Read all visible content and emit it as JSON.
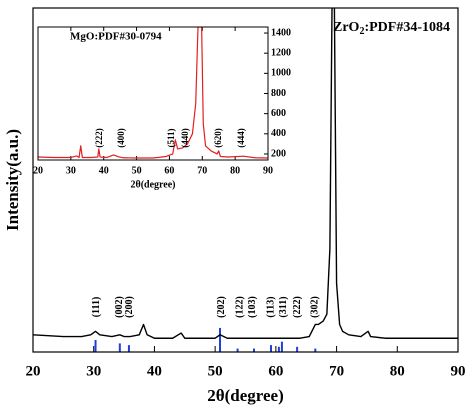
{
  "chart_data": [
    {
      "type": "line",
      "title": "ZrO",
      "title_subscript": "2",
      "title_suffix": ":PDF#34-1084",
      "x_label": "2θ(degree)",
      "y_label": "Intensity(a.u.)",
      "xlim": [
        20,
        90
      ],
      "xticks": [
        20,
        30,
        40,
        50,
        60,
        70,
        80,
        90
      ],
      "ylim": [
        0,
        100
      ],
      "series": [
        {
          "color": "#000000",
          "x": [
            20,
            25,
            28,
            29.5,
            30.3,
            31,
            33,
            34.3,
            35,
            36,
            37.5,
            38.2,
            38.8,
            40,
            43,
            44.4,
            45,
            48,
            50,
            50.8,
            52,
            55,
            58,
            60,
            62,
            64,
            65.5,
            66.5,
            67,
            67.8,
            68.4,
            68.9,
            69.3,
            69.6,
            70.0,
            70.5,
            71,
            72,
            74,
            75.2,
            75.6,
            78,
            82,
            86,
            90
          ],
          "values": [
            5,
            4.5,
            4.5,
            5,
            6,
            5,
            4.5,
            5,
            4.5,
            4.5,
            5,
            8,
            5,
            4,
            4,
            5.5,
            4,
            4,
            4,
            5,
            4,
            4,
            4,
            4,
            4,
            4,
            4.5,
            8,
            8,
            9,
            11,
            30,
            110,
            110,
            20,
            8,
            6,
            5,
            4.5,
            6,
            4.5,
            4,
            4,
            4,
            4
          ]
        }
      ],
      "reference": {
        "color": "#1e3fe0",
        "x": [
          30.3,
          34.3,
          35.8,
          50.8,
          53.7,
          56.4,
          59.2,
          60.5,
          61,
          63.5,
          66.5
        ],
        "values": [
          3.5,
          2.5,
          2,
          7,
          1,
          1,
          2,
          1.5,
          3,
          1.5,
          1
        ]
      },
      "annotations": [
        {
          "text": "(111)",
          "x": 30.5
        },
        {
          "text": "(002)",
          "x": 34.3
        },
        {
          "text": "(200)",
          "x": 35.9
        },
        {
          "text": "(202)",
          "x": 51.1
        },
        {
          "text": "(122)",
          "x": 54.1
        },
        {
          "text": "(103)",
          "x": 56.2
        },
        {
          "text": "(113)",
          "x": 59.2
        },
        {
          "text": "(311)",
          "x": 61.3
        },
        {
          "text": "(222)",
          "x": 63.6
        },
        {
          "text": "(302)",
          "x": 66.5
        }
      ]
    },
    {
      "type": "line",
      "title": "MgO:PDF#30-0794",
      "x_label": "2θ(degree)",
      "xlim": [
        20,
        90
      ],
      "xticks": [
        20,
        30,
        40,
        50,
        60,
        70,
        80,
        90
      ],
      "ylim": [
        140,
        1460
      ],
      "yticks": [
        200,
        400,
        600,
        800,
        1000,
        1200,
        1400
      ],
      "series": [
        {
          "color": "#e02020",
          "x": [
            20,
            25,
            30,
            31.8,
            32.5,
            33,
            33.5,
            36,
            38.2,
            38.5,
            38.9,
            41,
            43,
            44.5,
            46,
            50,
            55,
            59,
            61,
            61.8,
            62.5,
            64,
            65.5,
            67,
            68,
            68.7,
            69.8,
            70.3,
            71,
            72.7,
            74.5,
            75,
            75.5,
            78,
            82.5,
            86,
            90
          ],
          "values": [
            170,
            165,
            165,
            180,
            165,
            280,
            165,
            165,
            170,
            250,
            170,
            165,
            190,
            172,
            162,
            160,
            160,
            175,
            200,
            340,
            250,
            260,
            300,
            400,
            700,
            1460,
            1460,
            500,
            280,
            230,
            200,
            230,
            175,
            170,
            178,
            162,
            160
          ]
        }
      ],
      "annotations": [
        {
          "text": "(222)",
          "x": 38.9
        },
        {
          "text": "(400)",
          "x": 45.5
        },
        {
          "text": "(511)",
          "x": 60.8
        },
        {
          "text": "(440)",
          "x": 65
        },
        {
          "text": "(620)",
          "x": 75
        },
        {
          "text": "(444)",
          "x": 82
        }
      ]
    }
  ]
}
